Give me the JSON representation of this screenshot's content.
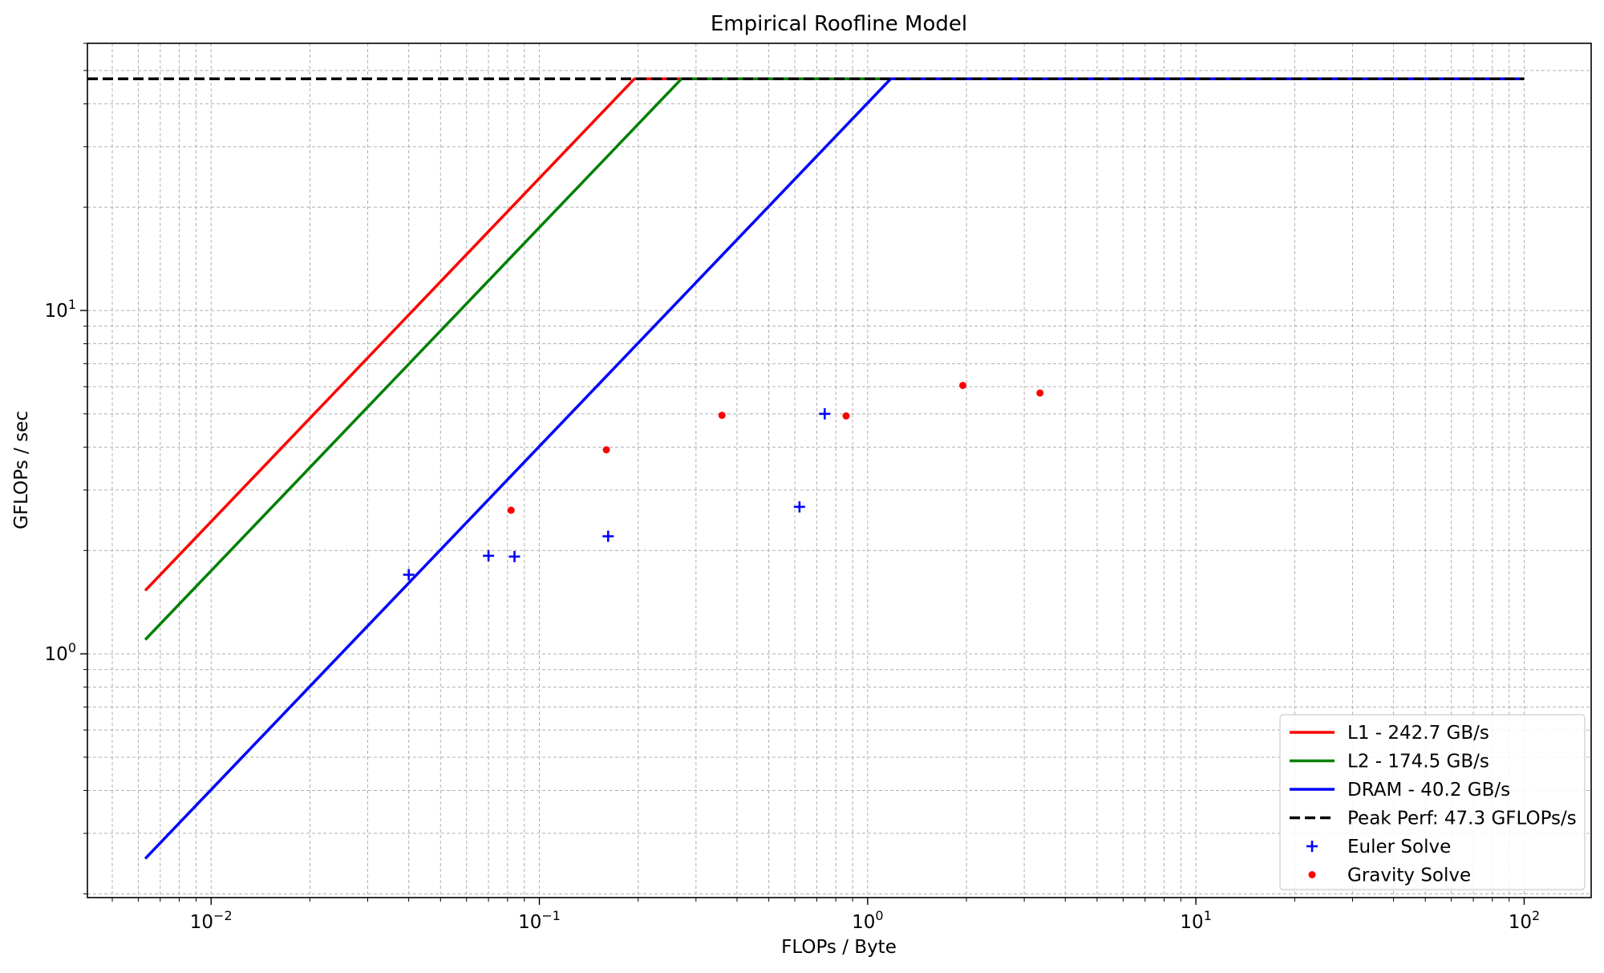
{
  "chart_data": {
    "type": "line",
    "title": "Empirical Roofline Model",
    "xlabel": "FLOPs / Byte",
    "ylabel": "GFLOPs / sec",
    "xscale": "log",
    "yscale": "log",
    "xlim": [
      0.0042,
      160
    ],
    "ylim": [
      0.195,
      60
    ],
    "grid": true,
    "legend_position": "lower-right",
    "x_ticks": [
      {
        "value": 0.01,
        "base": "10",
        "exp": "−2"
      },
      {
        "value": 0.1,
        "base": "10",
        "exp": "−1"
      },
      {
        "value": 1,
        "base": "10",
        "exp": "0"
      },
      {
        "value": 10,
        "base": "10",
        "exp": "1"
      },
      {
        "value": 100,
        "base": "10",
        "exp": "2"
      }
    ],
    "y_ticks": [
      {
        "value": 1,
        "base": "10",
        "exp": "0"
      },
      {
        "value": 10,
        "base": "10",
        "exp": "1"
      }
    ],
    "series": [
      {
        "name": "L1 - 242.7 GB/s",
        "kind": "roof",
        "bandwidth": 242.7,
        "color": "#ff0000",
        "x_start": 0.0063,
        "x_end": 100
      },
      {
        "name": "L2 - 174.5 GB/s",
        "kind": "roof",
        "bandwidth": 174.5,
        "color": "#008000",
        "x_start": 0.0063,
        "x_end": 100
      },
      {
        "name": "DRAM - 40.2 GB/s",
        "kind": "roof",
        "bandwidth": 40.2,
        "color": "#0000ff",
        "x_start": 0.0063,
        "x_end": 100
      },
      {
        "name": "Peak Perf: 47.3 GFLOPs/s",
        "kind": "peak",
        "value": 47.3,
        "color": "#000000",
        "x_start": 0.0042,
        "x_end": 100
      },
      {
        "name": "Euler Solve",
        "kind": "scatter",
        "marker": "plus",
        "color": "#0000ff",
        "points": [
          [
            0.04,
            1.7
          ],
          [
            0.07,
            1.93
          ],
          [
            0.084,
            1.92
          ],
          [
            0.162,
            2.2
          ],
          [
            0.62,
            2.68
          ],
          [
            0.74,
            5.0
          ]
        ]
      },
      {
        "name": "Gravity Solve",
        "kind": "scatter",
        "marker": "dot",
        "color": "#ff0000",
        "points": [
          [
            0.082,
            2.62
          ],
          [
            0.16,
            3.93
          ],
          [
            0.36,
            4.95
          ],
          [
            0.86,
            4.93
          ],
          [
            1.95,
            6.05
          ],
          [
            3.35,
            5.75
          ]
        ]
      }
    ]
  }
}
